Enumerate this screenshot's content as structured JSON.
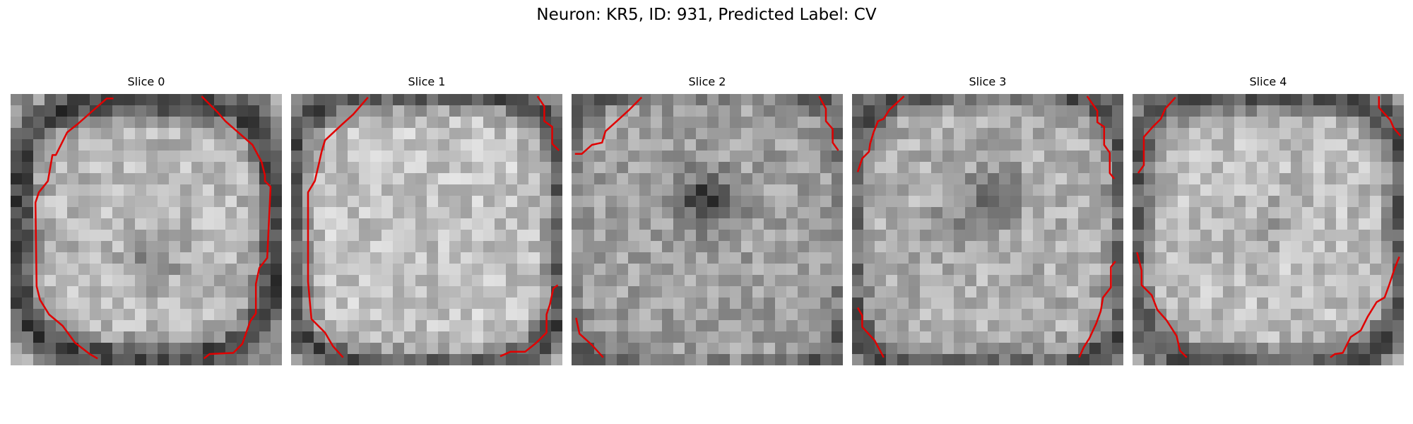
{
  "figure": {
    "title": "Neuron: KR5, ID: 931, Predicted Label: CV",
    "colors": {
      "contour": "#e00000",
      "background": "#ffffff"
    },
    "slices": [
      {
        "title": "Slice 0"
      },
      {
        "title": "Slice 1"
      },
      {
        "title": "Slice 2"
      },
      {
        "title": "Slice 3"
      },
      {
        "title": "Slice 4"
      }
    ]
  }
}
